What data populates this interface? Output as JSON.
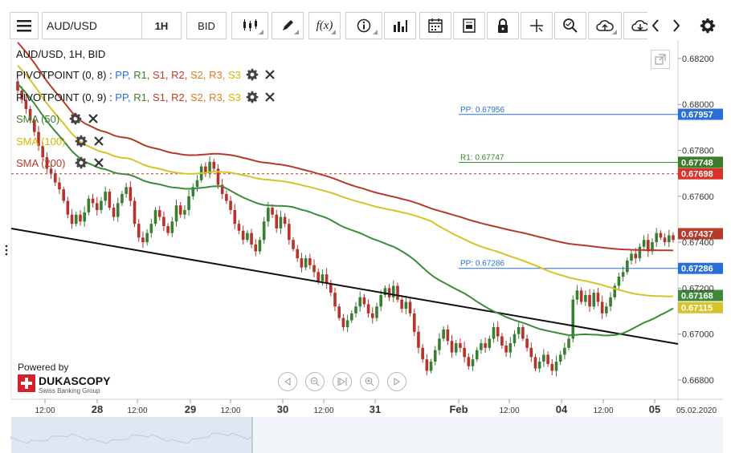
{
  "toolbar": {
    "symbol": "AUD/USD",
    "timeframe": "1H",
    "side": "BID",
    "fx_label": "f(x)"
  },
  "legend": {
    "title": "AUD/USD, 1H, BID",
    "pivot1": {
      "name": "PIVOTPOINT (0, 8)",
      "sep": " : ",
      "items": [
        "PP,",
        "R1,",
        "S1,",
        "R2,",
        "S2,",
        "R3,",
        "S3"
      ]
    },
    "pivot2": {
      "name": "PIVOTPOINT (0, 9)",
      "sep": " : ",
      "items": [
        "PP,",
        "R1,",
        "S1,",
        "R2,",
        "S2,",
        "R3,",
        "S3"
      ]
    },
    "sma50": "SMA (50)",
    "sma100": "SMA (100)",
    "sma200": "SMA (200)",
    "item_colors": [
      "#2b6fd6",
      "#3a7d2c",
      "#c0392b",
      "#c0392b",
      "#e07a1f",
      "#e07a1f",
      "#d4b800"
    ]
  },
  "branding": {
    "powered_by": "Powered by",
    "company": "DUKASCOPY",
    "tagline": "Swiss Banking Group"
  },
  "colors": {
    "up": "#3a7d35",
    "down": "#b5332a",
    "sma50": "#3f8a3a",
    "sma100": "#d8c22a",
    "sma200": "#b63a2a",
    "pivot": "#2b6fd6",
    "r1": "#3a7d2c",
    "trend": "#111111"
  },
  "chart_data": {
    "type": "candlestick",
    "symbol": "AUD/USD",
    "timeframe": "1H",
    "yticks": [
      "0.68200",
      "0.68000",
      "0.67800",
      "0.67600",
      "0.67400",
      "0.67200",
      "0.67000",
      "0.66800"
    ],
    "ylim": [
      0.6673,
      0.6828
    ],
    "xticks": [
      {
        "label": "12:00",
        "bold": false
      },
      {
        "label": "28",
        "bold": true
      },
      {
        "label": "12:00",
        "bold": false
      },
      {
        "label": "29",
        "bold": true
      },
      {
        "label": "12:00",
        "bold": false
      },
      {
        "label": "30",
        "bold": true
      },
      {
        "label": "12:00",
        "bold": false
      },
      {
        "label": "31",
        "bold": true
      },
      {
        "label": "Feb",
        "bold": true
      },
      {
        "label": "12:00",
        "bold": false
      },
      {
        "label": "04",
        "bold": true
      },
      {
        "label": "12:00",
        "bold": false
      },
      {
        "label": "05",
        "bold": true
      },
      {
        "label": "05.02.2020",
        "bold": false
      }
    ],
    "price_badges": [
      {
        "value": "0.67957",
        "role": "PP"
      },
      {
        "value": "0.67748",
        "role": "R1"
      },
      {
        "value": "0.67698",
        "role": "current"
      },
      {
        "value": "0.67437",
        "role": "SMA200"
      },
      {
        "value": "0.67286",
        "role": "PP"
      },
      {
        "value": "0.67168",
        "role": "SMA50"
      },
      {
        "value": "0.67115",
        "role": "SMA100"
      }
    ],
    "levels": [
      {
        "label": "PP: 0.67956",
        "value": 0.67956
      },
      {
        "label": "R1: 0.67747",
        "value": 0.67747
      },
      {
        "label": "PP: 0.67286",
        "value": 0.67286
      }
    ],
    "current_price": 0.67698,
    "closes": [
      0.6806,
      0.6802,
      0.6798,
      0.6793,
      0.6788,
      0.6782,
      0.6777,
      0.6772,
      0.677,
      0.6766,
      0.6763,
      0.6758,
      0.6752,
      0.6748,
      0.6752,
      0.6749,
      0.6753,
      0.6759,
      0.6757,
      0.6754,
      0.6758,
      0.6762,
      0.6755,
      0.6751,
      0.6757,
      0.6761,
      0.6764,
      0.6758,
      0.6748,
      0.6742,
      0.674,
      0.6744,
      0.6748,
      0.6754,
      0.6751,
      0.6747,
      0.6744,
      0.6749,
      0.6756,
      0.6752,
      0.6754,
      0.676,
      0.6764,
      0.6767,
      0.6773,
      0.677,
      0.6775,
      0.6772,
      0.6765,
      0.6761,
      0.6758,
      0.6754,
      0.6748,
      0.6745,
      0.6741,
      0.6744,
      0.6739,
      0.6736,
      0.6741,
      0.6749,
      0.6755,
      0.6752,
      0.6746,
      0.6751,
      0.6748,
      0.6741,
      0.6737,
      0.6733,
      0.6729,
      0.6733,
      0.673,
      0.6727,
      0.6723,
      0.6726,
      0.6722,
      0.6718,
      0.6712,
      0.6707,
      0.6703,
      0.6706,
      0.6709,
      0.6712,
      0.6716,
      0.6713,
      0.6709,
      0.6707,
      0.6712,
      0.6717,
      0.672,
      0.6716,
      0.6721,
      0.6715,
      0.6711,
      0.6714,
      0.6709,
      0.6701,
      0.6694,
      0.6689,
      0.6684,
      0.6688,
      0.6693,
      0.6698,
      0.6702,
      0.6697,
      0.6692,
      0.6696,
      0.6694,
      0.669,
      0.6686,
      0.6689,
      0.6693,
      0.6696,
      0.6694,
      0.6698,
      0.6703,
      0.6699,
      0.6695,
      0.6692,
      0.6696,
      0.67,
      0.6703,
      0.6698,
      0.6694,
      0.669,
      0.6685,
      0.6688,
      0.6691,
      0.6687,
      0.6684,
      0.6688,
      0.6691,
      0.6694,
      0.6698,
      0.6715,
      0.6719,
      0.6714,
      0.6717,
      0.6712,
      0.6718,
      0.6714,
      0.6709,
      0.6712,
      0.6716,
      0.6721,
      0.6725,
      0.6727,
      0.6732,
      0.6735,
      0.6733,
      0.6738,
      0.6741,
      0.6736,
      0.674,
      0.6744,
      0.6742,
      0.674,
      0.6743,
      0.6741
    ]
  }
}
